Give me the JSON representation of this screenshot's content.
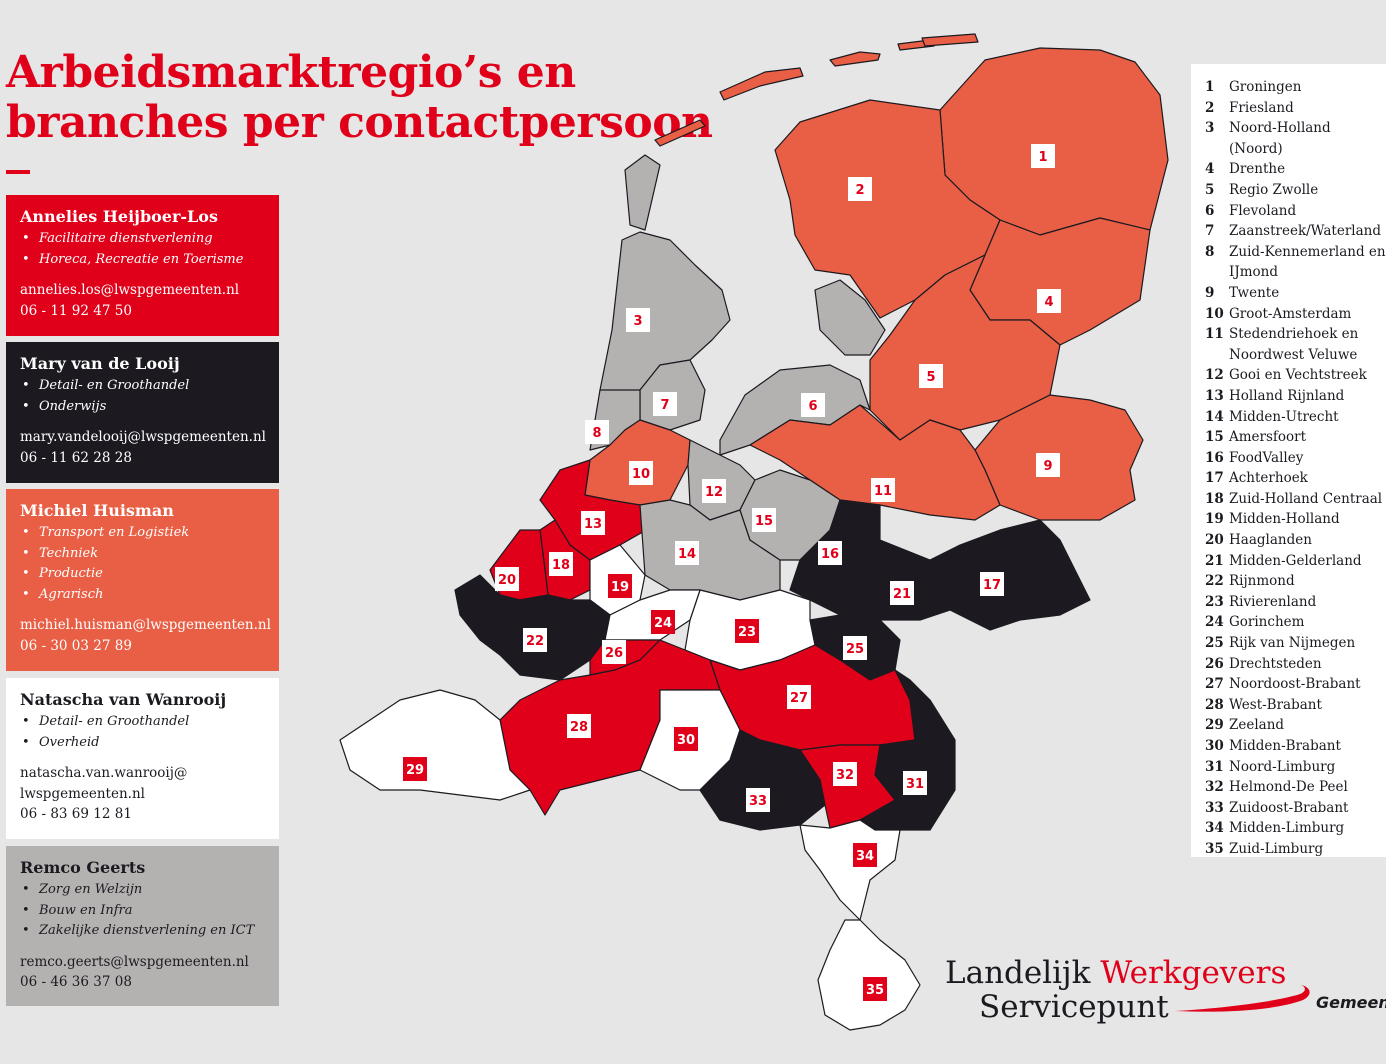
{
  "title": "Arbeidsmarktregio’s en\nbranches per contactpersoon",
  "colors": {
    "red": "#e1001a",
    "black": "#1c1a20",
    "orange": "#e85f45",
    "white": "#ffffff",
    "grey": "#b4b2b0"
  },
  "contacts": [
    {
      "name": "Annelies Heijboer-Los",
      "color": "red",
      "branches": [
        "Facilitaire dienstverlening",
        "Horeca, Recreatie en Toerisme"
      ],
      "contact": "annelies.los@lwspgemeenten.nl\n06 - 11 92 47 50"
    },
    {
      "name": "Mary van de Looij",
      "color": "black",
      "branches": [
        "Detail- en Groothandel",
        "Onderwijs"
      ],
      "contact": "mary.vandelooij@lwspgemeenten.nl\n06 - 11 62 28 28"
    },
    {
      "name": "Michiel Huisman",
      "color": "orange",
      "branches": [
        "Transport en Logistiek",
        "Techniek",
        "Productie",
        "Agrarisch"
      ],
      "contact": "michiel.huisman@lwspgemeenten.nl\n06 - 30 03 27 89"
    },
    {
      "name": "Natascha van Wanrooij",
      "color": "white",
      "branches": [
        "Detail- en Groothandel",
        "Overheid"
      ],
      "contact": "natascha.van.wanrooij@\nlwspgemeenten.nl\n06 - 83 69 12 81"
    },
    {
      "name": "Remco Geerts",
      "color": "grey",
      "branches": [
        "Zorg en Welzijn",
        "Bouw en Infra",
        "Zakelijke dienstverlening en ICT"
      ],
      "contact": "remco.geerts@lwspgemeenten.nl\n06 - 46 36 37 08"
    }
  ],
  "regions": [
    {
      "num": "1",
      "name": "Groningen",
      "color": "orange"
    },
    {
      "num": "2",
      "name": "Friesland",
      "color": "orange"
    },
    {
      "num": "3",
      "name": "Noord-Holland (Noord)",
      "color": "grey"
    },
    {
      "num": "4",
      "name": "Drenthe",
      "color": "orange"
    },
    {
      "num": "5",
      "name": "Regio Zwolle",
      "color": "orange"
    },
    {
      "num": "6",
      "name": "Flevoland",
      "color": "grey"
    },
    {
      "num": "7",
      "name": "Zaanstreek/Waterland",
      "color": "grey"
    },
    {
      "num": "8",
      "name": "Zuid-Kennemerland en IJmond",
      "color": "grey"
    },
    {
      "num": "9",
      "name": "Twente",
      "color": "orange"
    },
    {
      "num": "10",
      "name": "Groot-Amsterdam",
      "color": "orange"
    },
    {
      "num": "11",
      "name": "Stedendriehoek en Noordwest Veluwe",
      "color": "orange"
    },
    {
      "num": "12",
      "name": "Gooi en Vechtstreek",
      "color": "grey"
    },
    {
      "num": "13",
      "name": "Holland Rijnland",
      "color": "red"
    },
    {
      "num": "14",
      "name": "Midden-Utrecht",
      "color": "grey"
    },
    {
      "num": "15",
      "name": "Amersfoort",
      "color": "grey"
    },
    {
      "num": "16",
      "name": "FoodValley",
      "color": "black"
    },
    {
      "num": "17",
      "name": "Achterhoek",
      "color": "black"
    },
    {
      "num": "18",
      "name": "Zuid-Holland Centraal",
      "color": "red"
    },
    {
      "num": "19",
      "name": "Midden-Holland",
      "color": "white"
    },
    {
      "num": "20",
      "name": "Haaglanden",
      "color": "red"
    },
    {
      "num": "21",
      "name": "Midden-Gelderland",
      "color": "black"
    },
    {
      "num": "22",
      "name": "Rijnmond",
      "color": "black"
    },
    {
      "num": "23",
      "name": "Rivierenland",
      "color": "white"
    },
    {
      "num": "24",
      "name": "Gorinchem",
      "color": "white"
    },
    {
      "num": "25",
      "name": "Rijk van Nijmegen",
      "color": "black"
    },
    {
      "num": "26",
      "name": "Drechtsteden",
      "color": "red"
    },
    {
      "num": "27",
      "name": "Noordoost-Brabant",
      "color": "red"
    },
    {
      "num": "28",
      "name": "West-Brabant",
      "color": "red"
    },
    {
      "num": "29",
      "name": "Zeeland",
      "color": "white"
    },
    {
      "num": "30",
      "name": "Midden-Brabant",
      "color": "white"
    },
    {
      "num": "31",
      "name": "Noord-Limburg",
      "color": "black"
    },
    {
      "num": "32",
      "name": "Helmond-De Peel",
      "color": "red"
    },
    {
      "num": "33",
      "name": "Zuidoost-Brabant",
      "color": "black"
    },
    {
      "num": "34",
      "name": "Midden-Limburg",
      "color": "white"
    },
    {
      "num": "35",
      "name": "Zuid-Limburg",
      "color": "white"
    }
  ],
  "logo": {
    "line1a": "Landelijk ",
    "line1b": "Werkgevers",
    "line2": "Servicepunt",
    "tag": "Gemeenten"
  }
}
